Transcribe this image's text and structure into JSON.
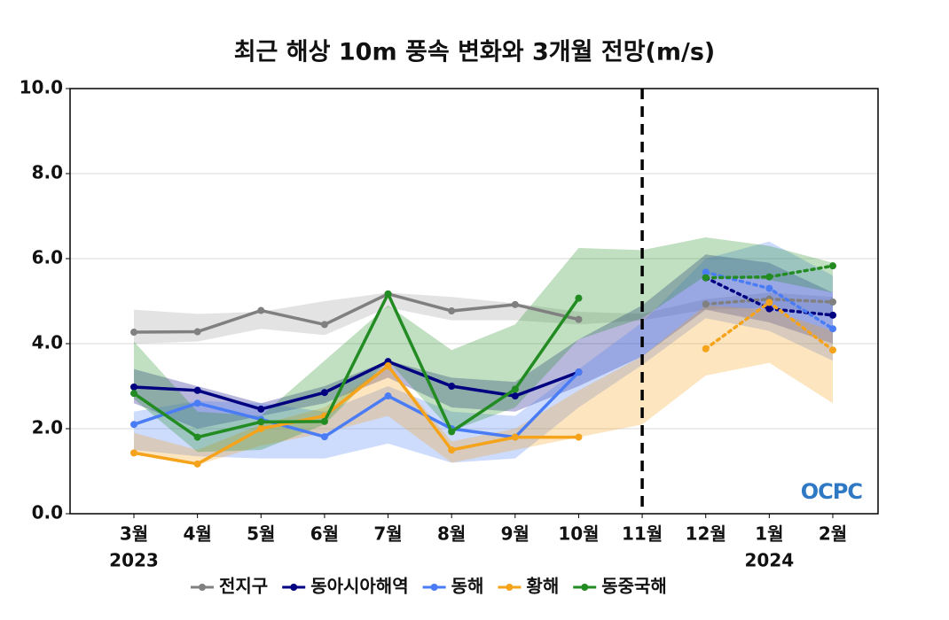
{
  "chart_data": {
    "type": "line",
    "title": "최근 해상 10m 풍속 변화와 3개월 전망(m/s)",
    "categories": [
      "3월",
      "4월",
      "5월",
      "6월",
      "7월",
      "8월",
      "9월",
      "10월",
      "11월",
      "12월",
      "1월",
      "2월"
    ],
    "years": [
      "2023",
      null,
      null,
      null,
      null,
      null,
      null,
      null,
      null,
      null,
      "2024",
      null
    ],
    "ylim": [
      0,
      10
    ],
    "yticks": [
      {
        "value": 0,
        "label": "0.0"
      },
      {
        "value": 2,
        "label": "2.0"
      },
      {
        "value": 4,
        "label": "4.0"
      },
      {
        "value": 6,
        "label": "6.0"
      },
      {
        "value": 8,
        "label": "8.0"
      },
      {
        "value": 10,
        "label": "10.0"
      }
    ],
    "grid": true,
    "legend": "bottom",
    "logo": "OCPC",
    "series": [
      {
        "name": "전지구",
        "color": "#808080",
        "values": [
          4.27,
          4.28,
          4.78,
          4.45,
          5.17,
          4.77,
          4.92,
          4.57,
          null,
          null,
          null,
          null
        ],
        "forecast": [
          null,
          null,
          null,
          null,
          null,
          null,
          null,
          null,
          null,
          4.93,
          5.05,
          4.98
        ],
        "lower": [
          4.0,
          4.05,
          4.35,
          4.2,
          4.85,
          4.55,
          4.55,
          4.45,
          4.55,
          4.8,
          4.85,
          4.7
        ],
        "upper": [
          4.8,
          4.7,
          4.75,
          5.0,
          5.2,
          5.1,
          4.95,
          4.75,
          4.7,
          5.05,
          5.2,
          5.1
        ]
      },
      {
        "name": "동아시아해역",
        "color": "#000080",
        "values": [
          2.98,
          2.9,
          2.46,
          2.85,
          3.58,
          3.0,
          2.77,
          3.33,
          null,
          null,
          null,
          null
        ],
        "forecast": [
          null,
          null,
          null,
          null,
          null,
          null,
          null,
          null,
          null,
          5.55,
          4.82,
          4.67
        ],
        "lower": [
          2.6,
          2.0,
          2.3,
          2.6,
          3.2,
          2.5,
          2.4,
          3.0,
          3.7,
          4.8,
          4.5,
          4.0
        ],
        "upper": [
          3.4,
          3.0,
          2.6,
          3.0,
          3.6,
          3.2,
          3.1,
          4.1,
          4.9,
          6.1,
          5.9,
          5.2
        ]
      },
      {
        "name": "동해",
        "color": "#4a7cf5",
        "values": [
          2.1,
          2.6,
          2.22,
          1.81,
          2.77,
          2.0,
          1.8,
          3.33,
          null,
          null,
          null,
          null
        ],
        "forecast": [
          null,
          null,
          null,
          null,
          null,
          null,
          null,
          null,
          null,
          5.68,
          5.3,
          4.35
        ],
        "lower": [
          1.5,
          1.35,
          1.3,
          1.3,
          1.65,
          1.2,
          1.3,
          2.5,
          3.5,
          4.6,
          4.3,
          3.6
        ],
        "upper": [
          2.4,
          2.65,
          2.6,
          2.4,
          3.0,
          2.4,
          2.3,
          3.4,
          4.5,
          6.0,
          6.4,
          5.6
        ]
      },
      {
        "name": "황해",
        "color": "#f5a31a",
        "values": [
          1.43,
          1.17,
          2.0,
          2.3,
          3.48,
          1.5,
          1.8,
          1.8,
          null,
          null,
          null,
          null
        ],
        "forecast": [
          null,
          null,
          null,
          null,
          null,
          null,
          null,
          null,
          null,
          3.88,
          4.97,
          3.85
        ],
        "lower": [
          1.4,
          1.15,
          1.6,
          1.9,
          2.3,
          1.2,
          1.5,
          1.8,
          2.1,
          3.25,
          3.55,
          2.6
        ],
        "upper": [
          1.9,
          1.5,
          2.1,
          2.5,
          3.5,
          1.7,
          2.0,
          2.9,
          3.7,
          4.9,
          4.8,
          4.3
        ]
      },
      {
        "name": "동중국해",
        "color": "#228b22",
        "values": [
          2.83,
          1.8,
          2.16,
          2.17,
          5.17,
          1.93,
          2.93,
          5.07,
          null,
          null,
          null,
          null
        ],
        "forecast": [
          null,
          null,
          null,
          null,
          null,
          null,
          null,
          null,
          null,
          5.55,
          5.57,
          5.83
        ],
        "lower": [
          2.7,
          1.45,
          1.5,
          2.1,
          3.6,
          1.95,
          2.5,
          4.1,
          4.6,
          5.6,
          5.5,
          5.2
        ],
        "upper": [
          4.05,
          2.4,
          2.3,
          3.6,
          4.9,
          3.85,
          4.45,
          6.25,
          6.2,
          6.5,
          6.3,
          5.9
        ]
      }
    ]
  }
}
